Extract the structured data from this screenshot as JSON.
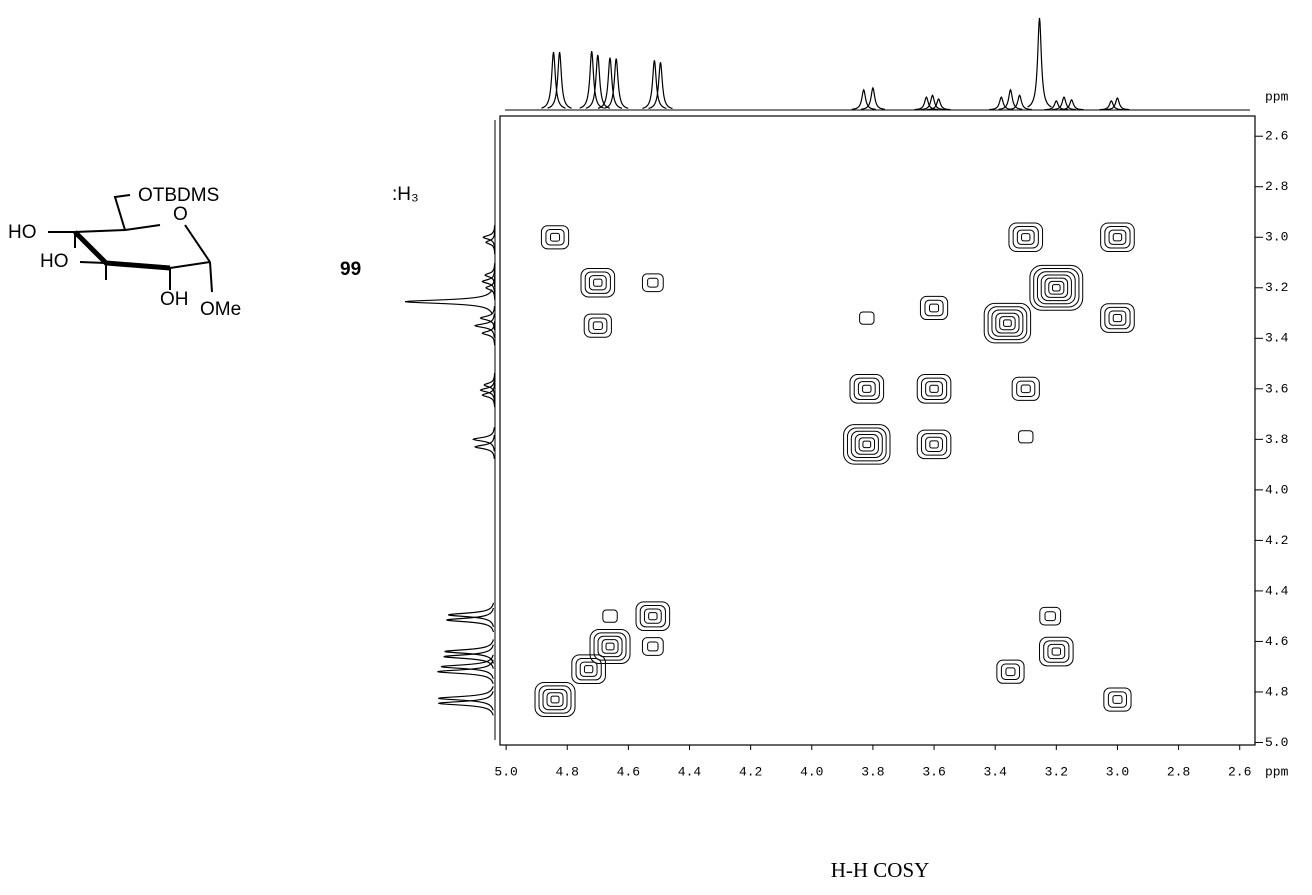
{
  "chart_data": {
    "type": "cosy",
    "title": "H-H COSY",
    "compound_label": "99",
    "structure_labels": [
      "OTBDMS",
      "O",
      "HO",
      "HO",
      "OH",
      "OMe"
    ],
    "clipped_label": ":H₃",
    "xlabel": "ppm",
    "ylabel": "ppm",
    "xlim": [
      5.02,
      2.55
    ],
    "ylim": [
      2.52,
      5.01
    ],
    "xticks": [
      {
        "value": 5,
        "label": "5.0"
      },
      4.8,
      4.6,
      4.4,
      4.2,
      {
        "value": 4,
        "label": "4.0"
      },
      3.8,
      3.6,
      3.4,
      3.2,
      {
        "value": 3,
        "label": "3.0"
      },
      2.8,
      2.6
    ],
    "yticks": [
      2.6,
      2.8,
      {
        "value": 3,
        "label": "3.0"
      },
      3.2,
      3.4,
      3.6,
      3.8,
      {
        "value": 4,
        "label": "4.0"
      },
      4.2,
      4.4,
      4.6,
      4.8,
      {
        "value": 5,
        "label": "5.0"
      }
    ],
    "color": "#000000",
    "peaks": {
      "x": [
        4.84,
        4.7,
        4.52,
        4.7,
        3.82,
        3.6,
        3.3,
        3.0,
        3.2,
        3.36,
        3.0,
        3.82,
        3.6,
        3.3,
        3.3,
        3.82,
        3.6,
        4.66,
        4.52,
        4.52,
        4.66,
        4.73,
        4.84,
        3.22,
        3.2,
        3.35,
        3.0
      ],
      "y": [
        3.0,
        3.18,
        3.18,
        3.35,
        3.32,
        3.28,
        3.0,
        3.0,
        3.2,
        3.34,
        3.32,
        3.6,
        3.6,
        3.6,
        3.79,
        3.82,
        3.82,
        4.5,
        4.5,
        4.62,
        4.62,
        4.71,
        4.83,
        4.5,
        4.64,
        4.72,
        4.83
      ],
      "levels": [
        3,
        4,
        2,
        3,
        1,
        3,
        4,
        4,
        7,
        6,
        4,
        4,
        4,
        3,
        1,
        6,
        4,
        1,
        4,
        2,
        5,
        4,
        5,
        2,
        4,
        3,
        3
      ]
    },
    "spectrum": {
      "x": [
        4.845,
        4.825,
        4.72,
        4.7,
        4.66,
        4.64,
        4.515,
        4.495,
        3.83,
        3.8,
        3.625,
        3.605,
        3.585,
        3.38,
        3.35,
        3.32,
        3.255,
        3.2,
        3.175,
        3.15,
        3.02,
        3.0
      ],
      "values": [
        63,
        63,
        64,
        60,
        57,
        56,
        54,
        52,
        22,
        24,
        14,
        16,
        12,
        14,
        22,
        16,
        100,
        10,
        14,
        11,
        10,
        13
      ]
    }
  }
}
